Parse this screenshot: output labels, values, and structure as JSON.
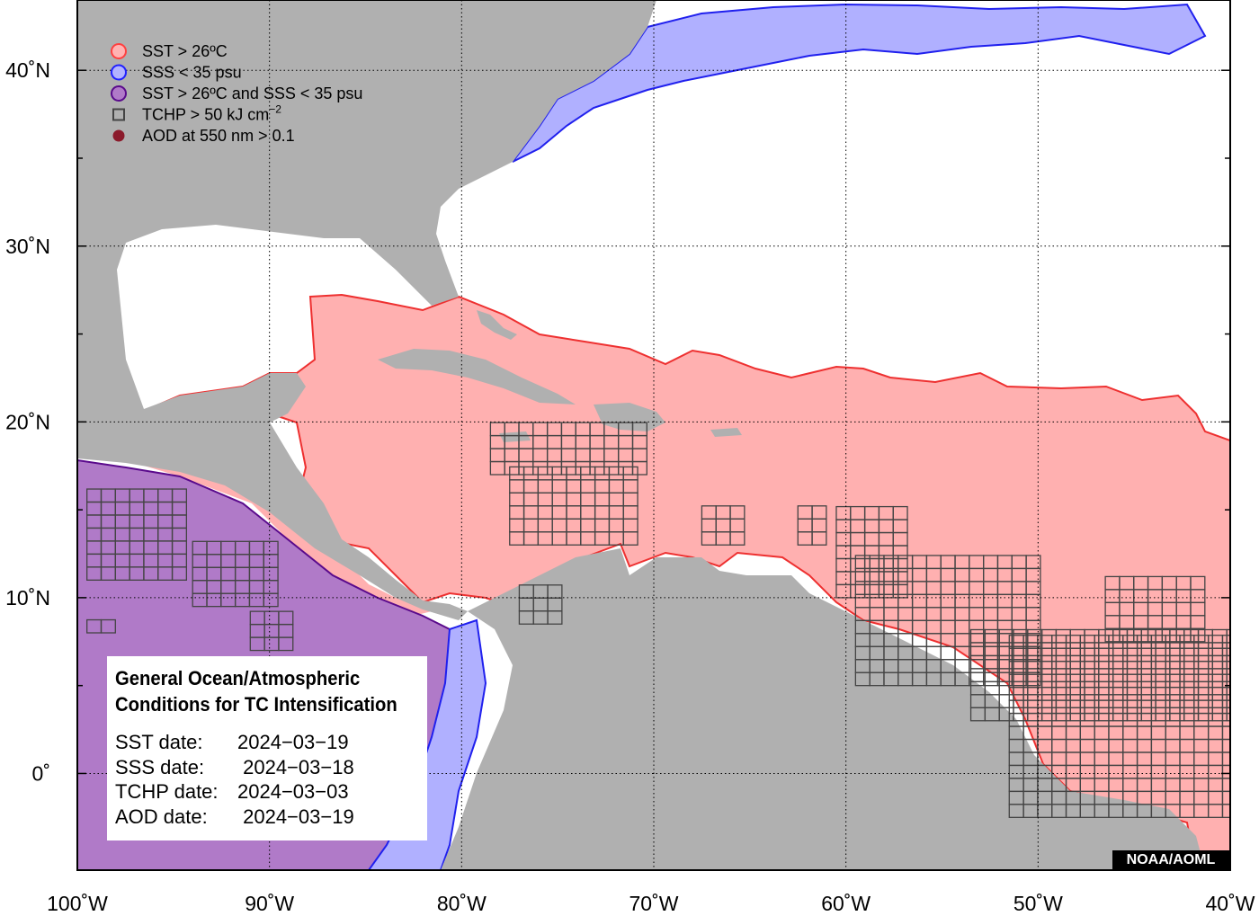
{
  "map": {
    "lat_labels": [
      "40˚N",
      "30˚N",
      "20˚N",
      "10˚N",
      "0˚"
    ],
    "lon_labels": [
      "100˚W",
      "90˚W",
      "80˚W",
      "70˚W",
      "60˚W",
      "50˚W",
      "40˚W"
    ],
    "extent": {
      "lon_min": -100,
      "lon_max": -40,
      "lat_min": -5.5,
      "lat_max": 44
    },
    "grid": "dotted"
  },
  "legend": {
    "items": [
      {
        "text": "SST > 26ºC",
        "symbol": "circle",
        "fill": "#ffb3b3",
        "stroke": "#ff4040"
      },
      {
        "text": "SSS < 35 psu",
        "symbol": "circle",
        "fill": "#b3b3ff",
        "stroke": "#2020ff"
      },
      {
        "text": "SST > 26ºC and SSS < 35 psu",
        "symbol": "circle",
        "fill": "#b07ac8",
        "stroke": "#5a0a8c"
      },
      {
        "text": "TCHP > 50 kJ cm",
        "superscript": "−2",
        "symbol": "square",
        "fill": "none",
        "stroke": "#444444"
      },
      {
        "text": "AOD at 550 nm > 0.1",
        "symbol": "dot",
        "fill": "#8b1a2b",
        "stroke": "#8b1a2b"
      }
    ]
  },
  "info": {
    "title_line1": "General Ocean/Atmospheric",
    "title_line2": "Conditions for TC Intensification",
    "rows": [
      {
        "label": "SST date:",
        "value": "2024−03−19"
      },
      {
        "label": "SSS date:",
        "value": " 2024−03−18"
      },
      {
        "label": "TCHP date:",
        "value": "2024−03−03"
      },
      {
        "label": "AOD date:",
        "value": " 2024−03−19"
      }
    ]
  },
  "credit": "NOAA/AOML",
  "colors": {
    "land": "#b0b0b0",
    "ocean": "#ffffff",
    "sst": "#ffb0b0",
    "sst_edge": "#ee3030",
    "sss": "#b0b0ff",
    "sss_edge": "#2020ee",
    "both": "#b07ac8",
    "both_edge": "#5a0a8c",
    "tchp_grid": "#444444"
  }
}
